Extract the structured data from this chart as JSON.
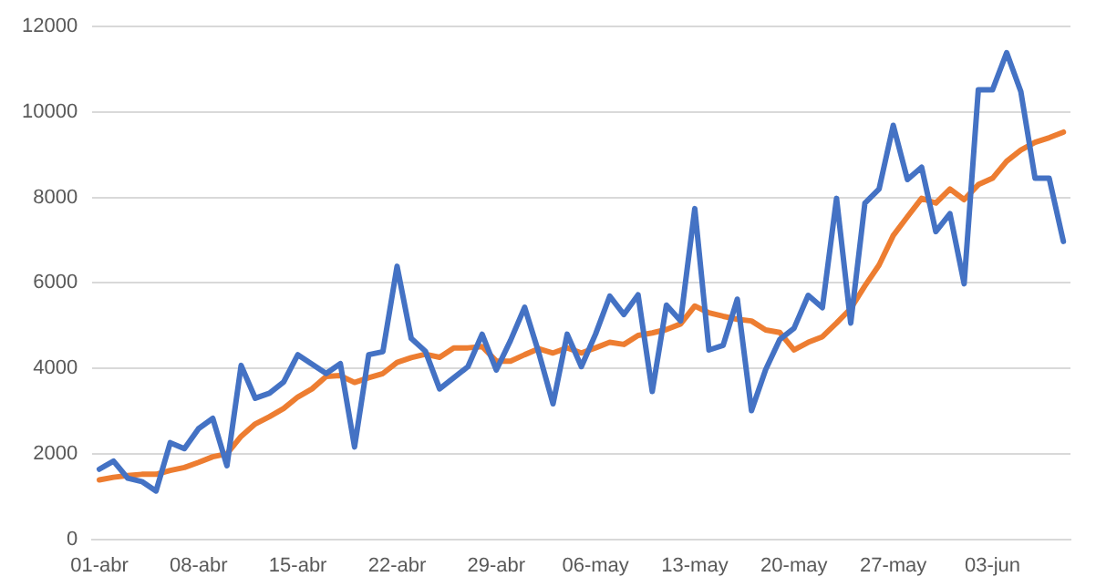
{
  "chart_data": {
    "type": "line",
    "categories": [
      "01-abr",
      null,
      null,
      null,
      null,
      null,
      null,
      "08-abr",
      null,
      null,
      null,
      null,
      null,
      null,
      "15-abr",
      null,
      null,
      null,
      null,
      null,
      null,
      "22-abr",
      null,
      null,
      null,
      null,
      null,
      null,
      "29-abr",
      null,
      null,
      null,
      null,
      null,
      null,
      "06-may",
      null,
      null,
      null,
      null,
      null,
      null,
      "13-may",
      null,
      null,
      null,
      null,
      null,
      null,
      "20-may",
      null,
      null,
      null,
      null,
      null,
      null,
      "27-may",
      null,
      null,
      null,
      null,
      null,
      null,
      "03-jun",
      null,
      null,
      null,
      null,
      null
    ],
    "series": [
      {
        "color": "#4472c4",
        "values": [
          1640,
          1830,
          1430,
          1350,
          1130,
          2260,
          2120,
          2590,
          2830,
          1720,
          4070,
          3300,
          3420,
          3680,
          4320,
          4100,
          3880,
          4110,
          2160,
          4320,
          4390,
          6390,
          4700,
          4400,
          3520,
          3780,
          4040,
          4800,
          3960,
          4650,
          5430,
          4360,
          3170,
          4800,
          4040,
          4800,
          5690,
          5260,
          5720,
          3460,
          5480,
          5110,
          7740,
          4430,
          4540,
          5620,
          3010,
          3970,
          4680,
          4940,
          5710,
          5420,
          7980,
          5060,
          7870,
          8200,
          9690,
          8420,
          8710,
          7200,
          7620,
          5980,
          10520,
          10520,
          11390,
          10480,
          8450,
          8450,
          6970
        ]
      },
      {
        "color": "#ed7d31",
        "values": [
          1390,
          1450,
          1490,
          1520,
          1520,
          1610,
          1680,
          1800,
          1930,
          2000,
          2410,
          2700,
          2870,
          3060,
          3330,
          3520,
          3810,
          3830,
          3670,
          3780,
          3880,
          4140,
          4250,
          4330,
          4260,
          4480,
          4480,
          4510,
          4170,
          4170,
          4320,
          4460,
          4360,
          4480,
          4360,
          4480,
          4610,
          4560,
          4770,
          4830,
          4910,
          5040,
          5460,
          5300,
          5220,
          5150,
          5110,
          4900,
          4840,
          4430,
          4610,
          4740,
          5060,
          5400,
          5930,
          6420,
          7110,
          7550,
          7980,
          7870,
          8200,
          7950,
          8300,
          8450,
          8850,
          9110,
          9290,
          9400,
          9530
        ]
      }
    ],
    "ylim": [
      0,
      12000
    ],
    "yticks": [
      0,
      2000,
      4000,
      6000,
      8000,
      10000,
      12000
    ],
    "grid": "y",
    "legend": false,
    "marker": "none",
    "line_style": "solid"
  }
}
